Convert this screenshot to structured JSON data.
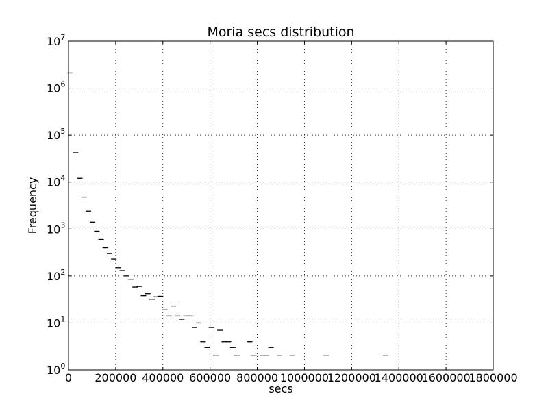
{
  "chart_data": {
    "type": "scatter",
    "title": "Moria secs distribution",
    "xlabel": "secs",
    "ylabel": "Frequency",
    "xlim": [
      0,
      1800000
    ],
    "ylim_log10": [
      0,
      7
    ],
    "y_scale": "log",
    "grid": true,
    "marker": "horizontal-dash",
    "x_ticks": [
      "0",
      "200000",
      "400000",
      "600000",
      "800000",
      "1000000",
      "1200000",
      "1400000",
      "1600000",
      "1800000"
    ],
    "x_tick_values": [
      0,
      200000,
      400000,
      600000,
      800000,
      1000000,
      1200000,
      1400000,
      1600000,
      1800000
    ],
    "y_tick_exponents": [
      "0",
      "1",
      "2",
      "3",
      "4",
      "5",
      "6",
      "7"
    ],
    "series": [
      {
        "points": [
          [
            5000,
            2100000
          ],
          [
            30000,
            42000
          ],
          [
            48000,
            12000
          ],
          [
            66000,
            4800
          ],
          [
            84000,
            2400
          ],
          [
            102000,
            1400
          ],
          [
            120000,
            900
          ],
          [
            138000,
            600
          ],
          [
            156000,
            400
          ],
          [
            174000,
            300
          ],
          [
            192000,
            230
          ],
          [
            210000,
            150
          ],
          [
            228000,
            130
          ],
          [
            246000,
            100
          ],
          [
            264000,
            85
          ],
          [
            282000,
            58
          ],
          [
            300000,
            60
          ],
          [
            318000,
            38
          ],
          [
            336000,
            42
          ],
          [
            354000,
            32
          ],
          [
            372000,
            36
          ],
          [
            390000,
            37
          ],
          [
            408000,
            19
          ],
          [
            426000,
            14
          ],
          [
            444000,
            23
          ],
          [
            462000,
            14
          ],
          [
            480000,
            12
          ],
          [
            498000,
            14
          ],
          [
            516000,
            14
          ],
          [
            534000,
            8
          ],
          [
            552000,
            10
          ],
          [
            570000,
            4
          ],
          [
            588000,
            3
          ],
          [
            606000,
            8
          ],
          [
            624000,
            2
          ],
          [
            642000,
            7
          ],
          [
            660000,
            4
          ],
          [
            678000,
            4
          ],
          [
            696000,
            3
          ],
          [
            714000,
            2
          ],
          [
            768000,
            4
          ],
          [
            786000,
            2
          ],
          [
            822000,
            2
          ],
          [
            840000,
            2
          ],
          [
            858000,
            3
          ],
          [
            894000,
            2
          ],
          [
            948000,
            2
          ],
          [
            1092000,
            2
          ],
          [
            1344000,
            2
          ]
        ]
      }
    ]
  }
}
